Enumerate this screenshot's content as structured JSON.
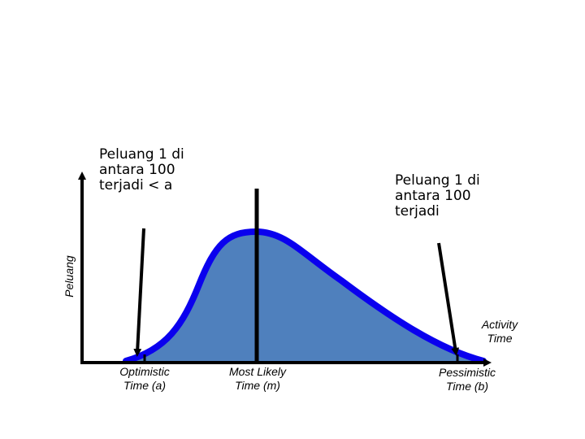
{
  "diagram": {
    "y_axis_label": "Peluang",
    "x_axis_label": "Activity\nTime",
    "annotation_left": "Peluang 1 di\nantara 100\nterjadi < a",
    "annotation_right": "Peluang 1 di\nantara 100\nterjadi",
    "points": [
      {
        "key": "a",
        "label": "Optimistic\nTime (a)"
      },
      {
        "key": "m",
        "label": "Most Likely\nTime (m)"
      },
      {
        "key": "b",
        "label": "Pessimistic\nTime (b)"
      }
    ],
    "colors": {
      "curve_stroke": "#0a00ee",
      "curve_fill": "#4f80bd",
      "axis": "#000000"
    }
  }
}
